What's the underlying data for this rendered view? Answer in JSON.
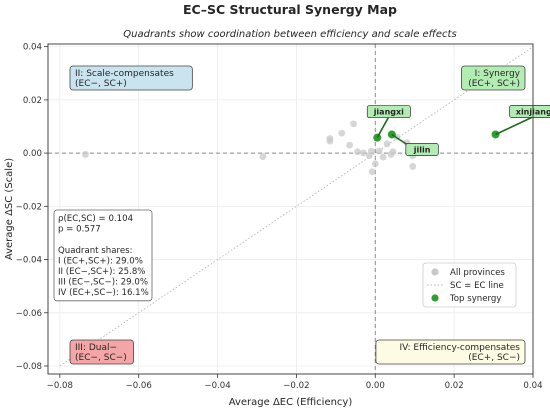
{
  "title": "EC–SC Structural Synergy Map",
  "subtitle": "Quadrants show coordination between efficiency and scale effects",
  "chart_data": {
    "type": "scatter",
    "title": "EC–SC Structural Synergy Map",
    "subtitle": "Quadrants show coordination between efficiency and scale effects",
    "xlabel": "Average ΔEC (Efficiency)",
    "ylabel": "Average ΔSC (Scale)",
    "xlim": [
      -0.083,
      0.04
    ],
    "ylim": [
      -0.083,
      0.041
    ],
    "x_ticks": [
      -0.08,
      -0.06,
      -0.04,
      -0.02,
      0.0,
      0.02,
      0.04
    ],
    "x_tick_labels": [
      "−0.08",
      "−0.06",
      "−0.04",
      "−0.02",
      "0.00",
      "0.02",
      "0.04"
    ],
    "y_ticks": [
      -0.08,
      -0.06,
      -0.04,
      -0.02,
      0.0,
      0.02,
      0.04
    ],
    "y_tick_labels": [
      "−0.08",
      "−0.06",
      "−0.04",
      "−0.02",
      "0.00",
      "0.02",
      "0.04"
    ],
    "grid": true,
    "reference_lines": {
      "x": 0,
      "y": 0
    },
    "series": [
      {
        "name": "All provinces",
        "color": "#c8c8c8",
        "points": [
          {
            "x": -0.0735,
            "y": -0.0005
          },
          {
            "x": -0.0285,
            "y": -0.0013
          },
          {
            "x": -0.0115,
            "y": 0.0055
          },
          {
            "x": -0.0115,
            "y": 0.0045
          },
          {
            "x": -0.0085,
            "y": 0.0075
          },
          {
            "x": -0.0065,
            "y": 0.003
          },
          {
            "x": -0.0055,
            "y": 0.011
          },
          {
            "x": -0.0045,
            "y": 0.0005
          },
          {
            "x": -0.003,
            "y": 0.0001
          },
          {
            "x": -0.0015,
            "y": -0.001
          },
          {
            "x": -0.001,
            "y": 0.0008
          },
          {
            "x": 0.0,
            "y": -0.004
          },
          {
            "x": -0.0008,
            "y": -0.007
          },
          {
            "x": 0.001,
            "y": 0.0008
          },
          {
            "x": 0.002,
            "y": -0.0015
          },
          {
            "x": 0.003,
            "y": 0.0035
          },
          {
            "x": 0.004,
            "y": -0.0005
          },
          {
            "x": 0.0045,
            "y": 0.0005
          },
          {
            "x": 0.0055,
            "y": 0.006
          },
          {
            "x": 0.008,
            "y": 0.004
          },
          {
            "x": 0.0095,
            "y": -0.005
          },
          {
            "x": 0.0095,
            "y": -0.001
          }
        ]
      },
      {
        "name": "SC = EC line",
        "type": "line",
        "color": "#b5b5b5",
        "points": [
          {
            "x": -0.08,
            "y": -0.08
          },
          {
            "x": 0.04,
            "y": 0.04
          }
        ]
      },
      {
        "name": "Top synergy",
        "color": "#2ca02c",
        "points": [
          {
            "x": 0.0305,
            "y": 0.007,
            "label": "xinjiang"
          },
          {
            "x": 0.0005,
            "y": 0.0058,
            "label": "jiangxi"
          },
          {
            "x": 0.0042,
            "y": 0.007,
            "label": "jilin"
          }
        ]
      }
    ],
    "quadrants": [
      {
        "text": [
          "I: Synergy",
          "(EC+, SC+)"
        ],
        "color": "#b3ecb3"
      },
      {
        "text": [
          "II: Scale-compensates",
          "(EC−, SC+)"
        ],
        "color": "#c9e4ef"
      },
      {
        "text": [
          "III: Dual−",
          "(EC−, SC−)"
        ],
        "color": "#f4a6a6"
      },
      {
        "text": [
          "IV: Efficiency-compensates",
          "(EC+, SC−)"
        ],
        "color": "#fdfbe3"
      }
    ],
    "stats_box": [
      "ρ(EC,SC) = 0.104",
      "p = 0.577",
      "",
      "Quadrant shares:",
      "I (EC+,SC+): 29.0%",
      "II (EC−,SC+): 25.8%",
      "III (EC−,SC−): 29.0%",
      "IV (EC+,SC−): 16.1%"
    ],
    "legend": {
      "placement": "lower-right",
      "entries": [
        "All provinces",
        "SC = EC line",
        "Top synergy"
      ]
    }
  }
}
